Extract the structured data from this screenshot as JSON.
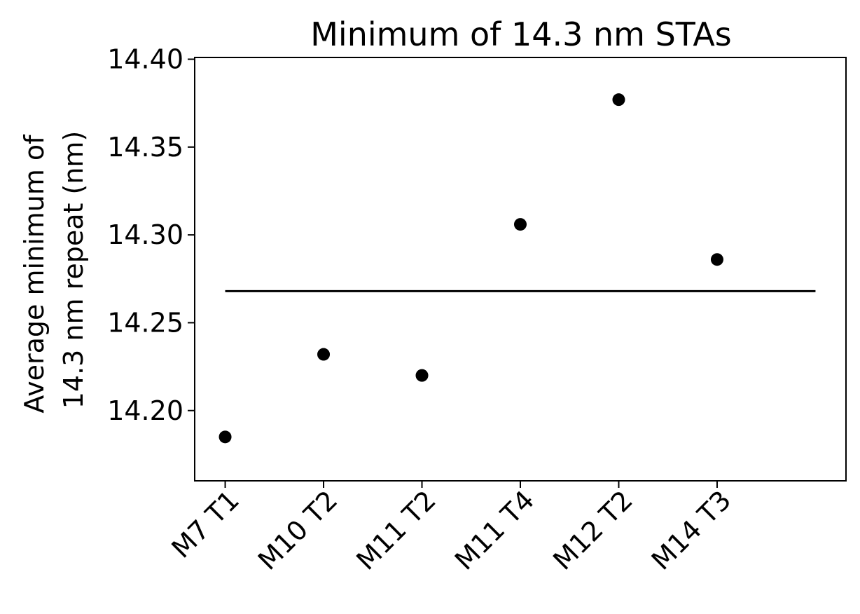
{
  "chart_data": {
    "type": "scatter",
    "title": "Minimum of 14.3 nm STAs",
    "xlabel": "",
    "ylabel_lines": [
      "Average minimum of",
      "14.3 nm repeat (nm)"
    ],
    "categories": [
      "M7 T1",
      "M10 T2",
      "M11 T2",
      "M11 T4",
      "M12 T2",
      "M14 T3"
    ],
    "values": [
      14.185,
      14.232,
      14.22,
      14.306,
      14.377,
      14.286
    ],
    "mean_line": {
      "value": 14.268,
      "x_start": 0,
      "x_end": 6
    },
    "xlim": [
      -0.31,
      6.31
    ],
    "ylim": [
      14.16,
      14.401
    ],
    "yticks": [
      14.2,
      14.25,
      14.3,
      14.35,
      14.4
    ],
    "ytick_labels": [
      "14.20",
      "14.25",
      "14.30",
      "14.35",
      "14.40"
    ],
    "grid": false,
    "colors": {
      "marker": "#000000",
      "line": "#000000",
      "axis": "#000000"
    }
  }
}
